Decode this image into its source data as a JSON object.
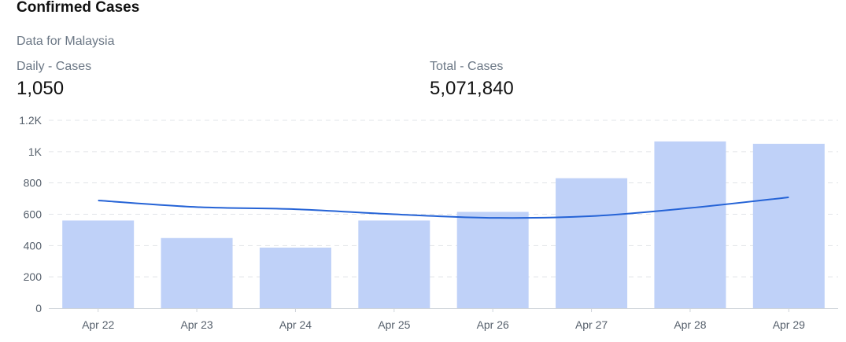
{
  "header": {
    "title": "Confirmed Cases",
    "subtitle": "Data for Malaysia"
  },
  "stats": {
    "daily_label": "Daily - Cases",
    "daily_value": "1,050",
    "total_label": "Total - Cases",
    "total_value": "5,071,840"
  },
  "chart_data": {
    "type": "bar",
    "categories": [
      "Apr 22",
      "Apr 23",
      "Apr 24",
      "Apr 25",
      "Apr 26",
      "Apr 27",
      "Apr 28",
      "Apr 29"
    ],
    "series": [
      {
        "type": "bar",
        "values": [
          560,
          448,
          387,
          560,
          615,
          830,
          1065,
          1050
        ]
      },
      {
        "type": "line",
        "values": [
          688,
          646,
          632,
          600,
          577,
          588,
          640,
          708
        ]
      }
    ],
    "ylim": [
      0,
      1200
    ],
    "yticks": [
      0,
      200,
      400,
      600,
      800,
      1000,
      1200
    ],
    "ytick_labels": [
      "0",
      "200",
      "400",
      "600",
      "800",
      "1K",
      "1.2K"
    ],
    "grid": true,
    "colors": {
      "bar": "#bfd1f8",
      "line": "#2563d6",
      "grid": "#e1e4e8",
      "axis": "#cfd4da"
    }
  }
}
